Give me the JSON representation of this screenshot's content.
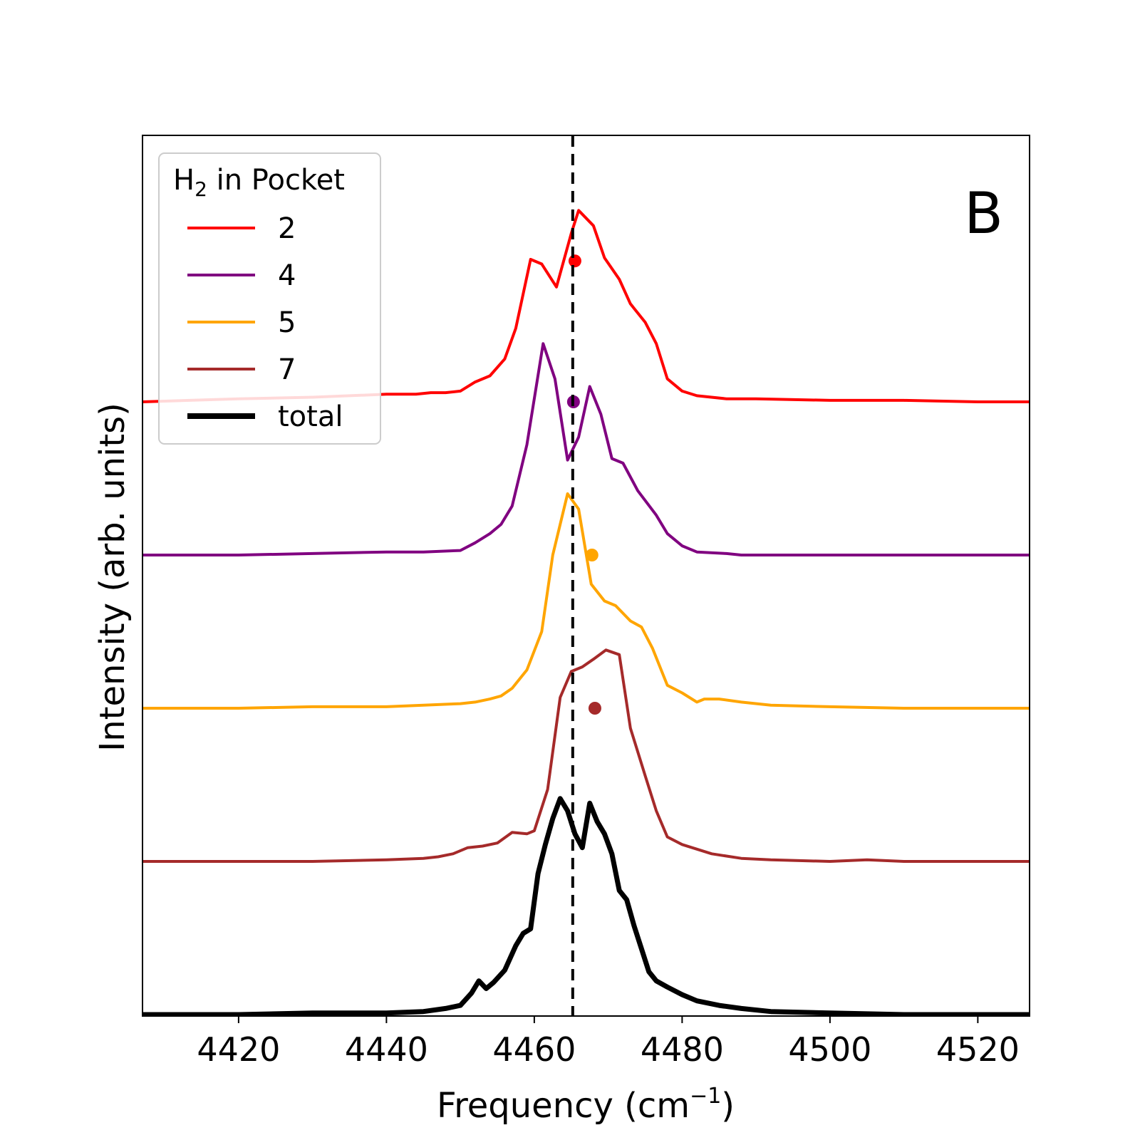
{
  "chart_data": {
    "type": "line",
    "panel_label": "B",
    "xlabel": "Frequency (cm",
    "xlabel_sup": "−1",
    "xlabel_end": ")",
    "ylabel": "Intensity (arb. units)",
    "xlim": [
      4407,
      4527
    ],
    "xticks": [
      4420,
      4440,
      4460,
      4480,
      4500,
      4520
    ],
    "yticks": [],
    "reference_line_x": 4465.2,
    "legend": {
      "title_main": "H",
      "title_sub": "2",
      "title_rest": " in Pocket",
      "position": "upper-left"
    },
    "series": [
      {
        "name": "2",
        "color": "#ff0000",
        "offset": 4.0,
        "peak_marker": {
          "x": 4465.5,
          "y": 0.92
        },
        "x": [
          4407,
          4420,
          4430,
          4440,
          4444,
          4446,
          4448,
          4450,
          4452,
          4454,
          4456,
          4457.5,
          4459.5,
          4461,
          4463,
          4465,
          4466,
          4468,
          4469.5,
          4471.5,
          4473,
          4475,
          4476.5,
          4478,
          4480,
          4482,
          4486,
          4490,
          4500,
          4510,
          4520,
          4527
        ],
        "y": [
          0.0,
          0.02,
          0.03,
          0.05,
          0.05,
          0.06,
          0.06,
          0.07,
          0.13,
          0.17,
          0.28,
          0.48,
          0.93,
          0.9,
          0.75,
          1.1,
          1.25,
          1.15,
          0.94,
          0.8,
          0.64,
          0.52,
          0.38,
          0.15,
          0.07,
          0.04,
          0.02,
          0.02,
          0.01,
          0.01,
          0.0,
          0.0
        ]
      },
      {
        "name": "4",
        "color": "#800080",
        "offset": 3.0,
        "peak_marker": {
          "x": 4465.3,
          "y": 1.0
        },
        "x": [
          4407,
          4420,
          4430,
          4440,
          4445,
          4450,
          4452,
          4454,
          4455.5,
          4457,
          4459,
          4461.2,
          4462.8,
          4464.5,
          4466,
          4467.5,
          4469,
          4470.5,
          4472,
          4474,
          4476.5,
          4478,
          4480,
          4482,
          4486,
          4488,
          4492,
          4500,
          4510,
          4520,
          4527
        ],
        "y": [
          0.0,
          0.0,
          0.01,
          0.02,
          0.02,
          0.03,
          0.08,
          0.14,
          0.2,
          0.32,
          0.72,
          1.38,
          1.15,
          0.62,
          0.77,
          1.1,
          0.92,
          0.63,
          0.6,
          0.42,
          0.26,
          0.14,
          0.06,
          0.02,
          0.01,
          0.0,
          0.0,
          0.0,
          0.0,
          0.0,
          0.0
        ]
      },
      {
        "name": "5",
        "color": "#ffa500",
        "offset": 2.0,
        "peak_marker": {
          "x": 4467.8,
          "y": 1.0
        },
        "x": [
          4407,
          4420,
          4430,
          4440,
          4445,
          4450,
          4452,
          4454,
          4455.5,
          4457,
          4459,
          4461,
          4462.5,
          4464.5,
          4466,
          4467.7,
          4469.5,
          4471,
          4473,
          4474.5,
          4476,
          4478,
          4480,
          4482,
          4483,
          4485,
          4488,
          4492,
          4500,
          4510,
          4520,
          4527
        ],
        "y": [
          0.0,
          0.0,
          0.01,
          0.01,
          0.02,
          0.03,
          0.04,
          0.06,
          0.08,
          0.13,
          0.25,
          0.5,
          1.0,
          1.4,
          1.3,
          0.81,
          0.7,
          0.67,
          0.57,
          0.53,
          0.39,
          0.15,
          0.1,
          0.04,
          0.06,
          0.06,
          0.04,
          0.02,
          0.01,
          0.0,
          0.0,
          0.0
        ]
      },
      {
        "name": "7",
        "color": "#a52a2a",
        "offset": 1.0,
        "peak_marker": {
          "x": 4468.2,
          "y": 1.0
        },
        "x": [
          4407,
          4420,
          4430,
          4440,
          4445,
          4447,
          4449,
          4451,
          4453,
          4455,
          4457,
          4459,
          4460,
          4461.8,
          4463.5,
          4465,
          4466.5,
          4468,
          4469.7,
          4471.5,
          4473,
          4475,
          4476.5,
          4478,
          4480,
          4484,
          4488,
          4492,
          4500,
          4505,
          4510,
          4520,
          4527
        ],
        "y": [
          0.0,
          0.0,
          0.0,
          0.01,
          0.02,
          0.03,
          0.05,
          0.09,
          0.1,
          0.12,
          0.19,
          0.18,
          0.2,
          0.47,
          1.07,
          1.24,
          1.27,
          1.32,
          1.38,
          1.35,
          0.87,
          0.56,
          0.33,
          0.16,
          0.11,
          0.05,
          0.02,
          0.01,
          0.0,
          0.01,
          0.0,
          0.0,
          0.0
        ]
      },
      {
        "name": "total",
        "color": "#000000",
        "offset": 0.0,
        "line_width": "thick",
        "x": [
          4407,
          4420,
          4430,
          4440,
          4445,
          4448,
          4450,
          4451.5,
          4452.5,
          4453.5,
          4454.5,
          4456,
          4457.5,
          4458.5,
          4459.5,
          4460.5,
          4461.5,
          4462.5,
          4463.5,
          4464.5,
          4465.5,
          4466.5,
          4467.5,
          4468.5,
          4469.5,
          4470.5,
          4471.5,
          4472.5,
          4473.5,
          4474.5,
          4475.5,
          4476.5,
          4478,
          4480,
          4482,
          4485,
          4488,
          4492,
          4500,
          4510,
          4520,
          4527
        ],
        "y": [
          0.0,
          0.0,
          0.01,
          0.01,
          0.02,
          0.04,
          0.06,
          0.14,
          0.22,
          0.17,
          0.21,
          0.29,
          0.45,
          0.53,
          0.56,
          0.92,
          1.11,
          1.28,
          1.41,
          1.33,
          1.18,
          1.09,
          1.38,
          1.26,
          1.18,
          1.05,
          0.81,
          0.75,
          0.58,
          0.43,
          0.28,
          0.22,
          0.18,
          0.13,
          0.09,
          0.06,
          0.04,
          0.02,
          0.01,
          0.0,
          0.0,
          0.0
        ]
      }
    ]
  }
}
